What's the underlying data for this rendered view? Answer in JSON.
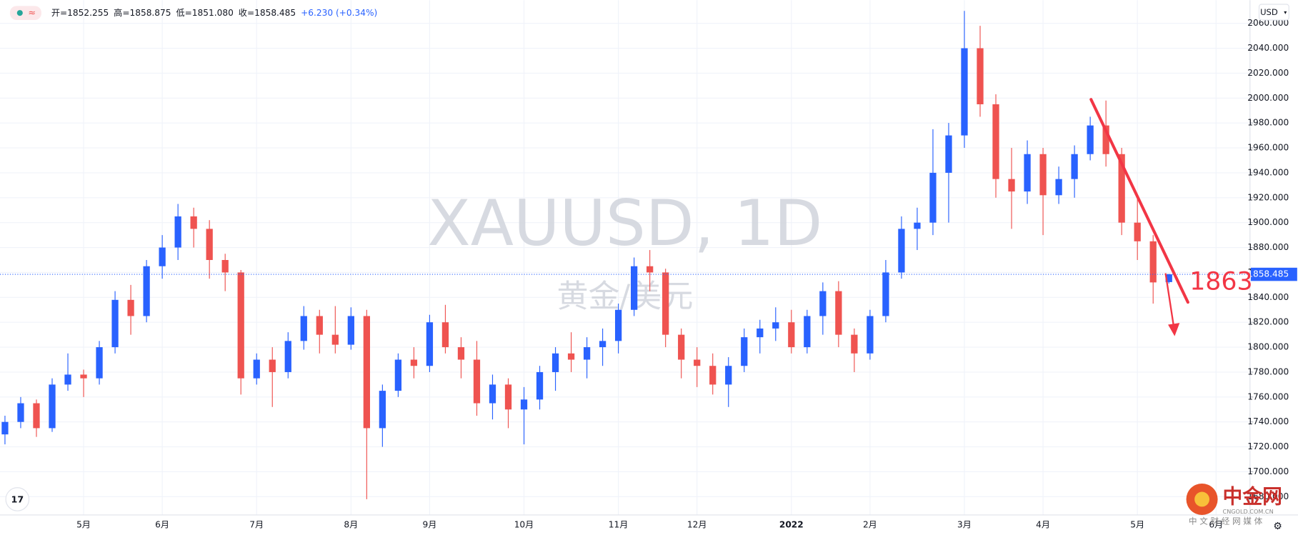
{
  "chart_data": {
    "type": "candlestick",
    "ohlc_header": [
      "开=1852.255",
      "高=1858.875",
      "低=1851.080",
      "收=1858.485",
      "+6.230 (+0.34%)"
    ],
    "watermark": "XAUUSD, 1D",
    "watermark_sub": "黄金/美元",
    "currency": "USD",
    "annotation": "1863",
    "up_color": "#2962ff",
    "down_color": "#ef5350",
    "grid": true,
    "categories": [
      null,
      null,
      null,
      null,
      null,
      "5月",
      null,
      null,
      null,
      null,
      "6月",
      null,
      null,
      null,
      null,
      null,
      "7月",
      null,
      null,
      null,
      null,
      null,
      "8月",
      null,
      null,
      null,
      null,
      "9月",
      null,
      null,
      null,
      null,
      null,
      "10月",
      null,
      null,
      null,
      null,
      null,
      "11月",
      null,
      null,
      null,
      null,
      "12月",
      null,
      null,
      null,
      null,
      null,
      "2022",
      null,
      null,
      null,
      null,
      "2月",
      null,
      null,
      null,
      null,
      null,
      "3月",
      null,
      null,
      null,
      null,
      "4月",
      null,
      null,
      null,
      null,
      null,
      "5月",
      null,
      null,
      null,
      null,
      "6月"
    ],
    "open": [
      1730,
      1740,
      1755,
      1735,
      1770,
      1778,
      1775,
      1800,
      1838,
      1825,
      1865,
      1880,
      1905,
      1895,
      1870,
      1860,
      1775,
      1790,
      1780,
      1805,
      1825,
      1810,
      1802,
      1825,
      1735,
      1765,
      1790,
      1785,
      1820,
      1800,
      1790,
      1755,
      1770,
      1750,
      1758,
      1780,
      1795,
      1790,
      1800,
      1805,
      1830,
      1865,
      1860,
      1810,
      1790,
      1785,
      1770,
      1785,
      1808,
      1815,
      1820,
      1800,
      1825,
      1845,
      1810,
      1795,
      1825,
      1860,
      1895,
      1900,
      1940,
      1970,
      2040,
      1995,
      1935,
      1925,
      1955,
      1922,
      1935,
      1955,
      1978,
      1955,
      1900,
      1885,
      1852.255,
      null,
      null,
      null
    ],
    "high": [
      1745,
      1760,
      1758,
      1775,
      1795,
      1782,
      1805,
      1845,
      1850,
      1870,
      1890,
      1915,
      1912,
      1902,
      1875,
      1862,
      1795,
      1800,
      1812,
      1833,
      1830,
      1833,
      1832,
      1830,
      1770,
      1795,
      1800,
      1826,
      1834,
      1808,
      1805,
      1778,
      1775,
      1768,
      1785,
      1800,
      1812,
      1808,
      1815,
      1835,
      1872,
      1878,
      1863,
      1815,
      1800,
      1795,
      1792,
      1815,
      1822,
      1832,
      1830,
      1830,
      1852,
      1853,
      1815,
      1830,
      1870,
      1905,
      1912,
      1975,
      1980,
      2070,
      2058,
      2003,
      1960,
      1966,
      1960,
      1945,
      1962,
      1985,
      1998,
      1960,
      1920,
      1890,
      1858.875,
      null,
      null,
      null
    ],
    "low": [
      1722,
      1735,
      1728,
      1732,
      1765,
      1760,
      1770,
      1795,
      1810,
      1820,
      1855,
      1870,
      1880,
      1855,
      1845,
      1762,
      1770,
      1752,
      1775,
      1798,
      1795,
      1795,
      1798,
      1678,
      1720,
      1760,
      1775,
      1780,
      1795,
      1775,
      1745,
      1742,
      1735,
      1722,
      1750,
      1765,
      1780,
      1775,
      1785,
      1795,
      1825,
      1845,
      1800,
      1775,
      1768,
      1762,
      1752,
      1780,
      1795,
      1805,
      1795,
      1795,
      1810,
      1800,
      1780,
      1790,
      1820,
      1855,
      1878,
      1890,
      1900,
      1960,
      1985,
      1920,
      1895,
      1915,
      1890,
      1915,
      1920,
      1950,
      1945,
      1890,
      1870,
      1835,
      1851.08,
      null,
      null,
      null
    ],
    "close": [
      1740,
      1755,
      1735,
      1770,
      1778,
      1775,
      1800,
      1838,
      1825,
      1865,
      1880,
      1905,
      1895,
      1870,
      1860,
      1775,
      1790,
      1780,
      1805,
      1825,
      1810,
      1802,
      1825,
      1735,
      1765,
      1790,
      1785,
      1820,
      1800,
      1790,
      1755,
      1770,
      1750,
      1758,
      1780,
      1795,
      1790,
      1800,
      1805,
      1830,
      1865,
      1860,
      1810,
      1790,
      1785,
      1770,
      1785,
      1808,
      1815,
      1820,
      1800,
      1825,
      1845,
      1810,
      1795,
      1825,
      1860,
      1895,
      1900,
      1940,
      1970,
      2040,
      1995,
      1935,
      1925,
      1955,
      1922,
      1935,
      1955,
      1978,
      1955,
      1900,
      1885,
      1852,
      1858.485,
      null,
      null,
      null
    ],
    "last_price": {
      "value": 1858.485,
      "label": "1858.485"
    },
    "ylim": [
      1665.3,
      2078.6
    ],
    "yticks": [
      {
        "value": 1680,
        "label": "1680.000"
      },
      {
        "value": 1700,
        "label": "1700.000"
      },
      {
        "value": 1720,
        "label": "1720.000"
      },
      {
        "value": 1740,
        "label": "1740.000"
      },
      {
        "value": 1760,
        "label": "1760.000"
      },
      {
        "value": 1780,
        "label": "1780.000"
      },
      {
        "value": 1800,
        "label": "1800.000"
      },
      {
        "value": 1820,
        "label": "1820.000"
      },
      {
        "value": 1840,
        "label": "1840.000"
      },
      {
        "value": 1860,
        "label": "1860.000"
      },
      {
        "value": 1880,
        "label": "1880.000"
      },
      {
        "value": 1900,
        "label": "1900.000"
      },
      {
        "value": 1920,
        "label": "1920.000"
      },
      {
        "value": 1940,
        "label": "1940.000"
      },
      {
        "value": 1960,
        "label": "1960.000"
      },
      {
        "value": 1980,
        "label": "1980.000"
      },
      {
        "value": 2000,
        "label": "2000.000"
      },
      {
        "value": 2020,
        "label": "2020.000"
      },
      {
        "value": 2040,
        "label": "2040.000"
      },
      {
        "value": 2060,
        "label": "2060.000"
      }
    ]
  },
  "logo": {
    "name": "中金网",
    "site": "CNGOLD.COM.CN",
    "slogan": "中 文 财 经 网 媒 体"
  }
}
